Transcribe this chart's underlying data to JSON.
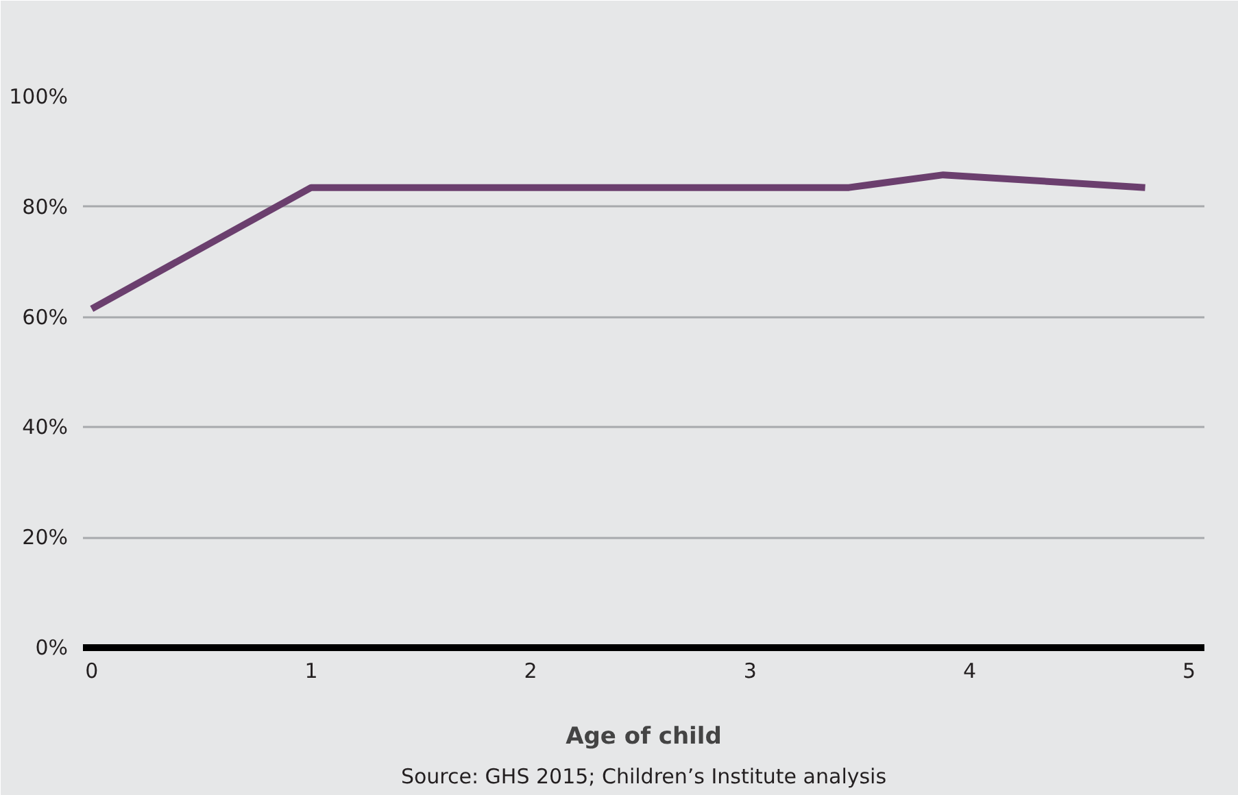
{
  "chart_data": {
    "type": "line",
    "xlabel": "Age of child",
    "annotations": [
      "Source: GHS 2015; Children’s Institute analysis"
    ],
    "x": [
      0,
      1,
      2,
      3,
      3.45,
      3.88,
      4.8
    ],
    "series": [
      {
        "color": "#6b3f6e",
        "values": [
          61.5,
          83.5,
          83.5,
          83.5,
          83.5,
          85.8,
          83.5
        ]
      }
    ],
    "xlim": [
      -0.04,
      5.07
    ],
    "xticks": [
      0,
      1,
      2,
      3,
      4,
      5
    ],
    "ylim": [
      0,
      100
    ],
    "yticks": [
      {
        "value": 0,
        "label": "0%"
      },
      {
        "value": 20,
        "label": "20%"
      },
      {
        "value": 40,
        "label": "40%"
      },
      {
        "value": 60,
        "label": "60%"
      },
      {
        "value": 80,
        "label": "80%"
      },
      {
        "value": 100,
        "label": "100%"
      }
    ],
    "grid": "y",
    "marker": "none",
    "line_style": "solid"
  }
}
